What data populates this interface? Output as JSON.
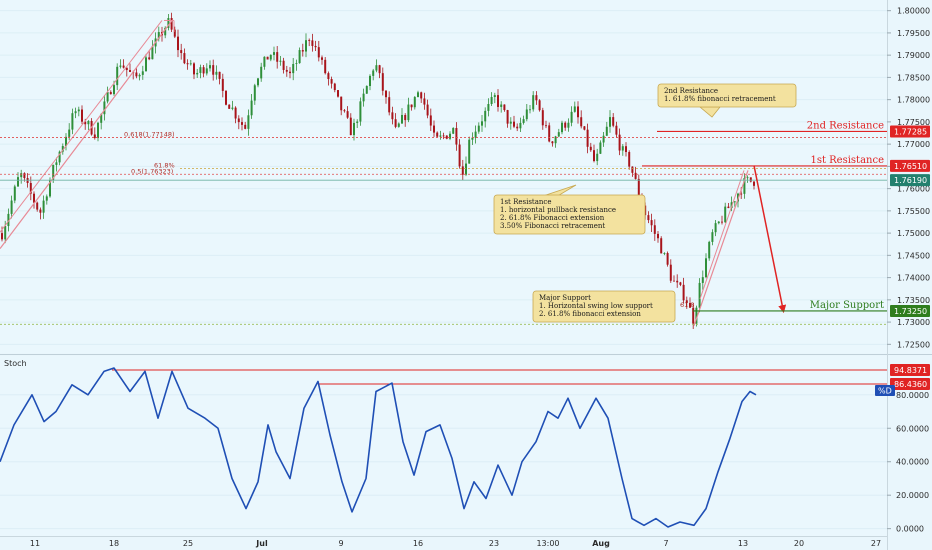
{
  "chart_data": {
    "type": "candlestick",
    "price_axis": {
      "ticks": [
        "1.80000",
        "1.79500",
        "1.79000",
        "1.78500",
        "1.78000",
        "1.77500",
        "1.77000",
        "1.76500",
        "1.76000",
        "1.75500",
        "1.75000",
        "1.74500",
        "1.74000",
        "1.73500",
        "1.73000",
        "1.72500"
      ],
      "range": [
        1.7235,
        1.8015
      ]
    },
    "time_axis": {
      "labels": [
        "11",
        "18",
        "25",
        "Jul",
        "9",
        "16",
        "23",
        "13:00",
        "Aug",
        "7",
        "13",
        "20",
        "27"
      ],
      "bold_labels": [
        "Jul",
        "Aug"
      ]
    },
    "price_badges": [
      {
        "value": "1.77285",
        "price": 1.77285,
        "color": "#e02424"
      },
      {
        "value": "1.76510",
        "price": 1.7651,
        "color": "#e02424"
      },
      {
        "value": "1.76190",
        "price": 1.7619,
        "color": "#22806e"
      },
      {
        "value": "1.73250",
        "price": 1.7325,
        "color": "#2f7d1e"
      }
    ],
    "levels": [
      {
        "label": "2nd Resistance",
        "price": 1.77285,
        "color": "#e02424"
      },
      {
        "label": "1st Resistance",
        "price": 1.7651,
        "color": "#e02424"
      },
      {
        "label": "Major Support",
        "price": 1.7325,
        "color": "#2f7d1e"
      }
    ],
    "fib_labels": [
      {
        "text": "0.618(1.77148)",
        "price": 1.77148
      },
      {
        "text": "61.8%",
        "price": 1.7645
      },
      {
        "text": "0.5(1.76323)",
        "price": 1.76323
      },
      {
        "text": "61.8",
        "price": 1.7332
      }
    ],
    "annotations": [
      {
        "lines": [
          "2nd Resistance",
          "1. 61.8% fibonacci retracement"
        ]
      },
      {
        "lines": [
          "1st Resistance",
          "1. horizontal pullback resistance",
          "2. 61.8% Fibonacci extension",
          "3.50% Fibonacci retracement"
        ]
      },
      {
        "lines": [
          "Major Support",
          "1. Horizontal swing low support",
          "2. 61.8% fibonacci extension"
        ]
      }
    ],
    "oscillator": {
      "title": "Stoch",
      "series_label": "%D",
      "ticks": [
        "80.0000",
        "60.0000",
        "40.0000",
        "20.0000",
        "0.0000"
      ],
      "range": [
        -2,
        102
      ],
      "levels": [
        {
          "value": "94.8371",
          "v": 94.8371
        },
        {
          "value": "86.4360",
          "v": 86.436
        }
      ]
    }
  }
}
